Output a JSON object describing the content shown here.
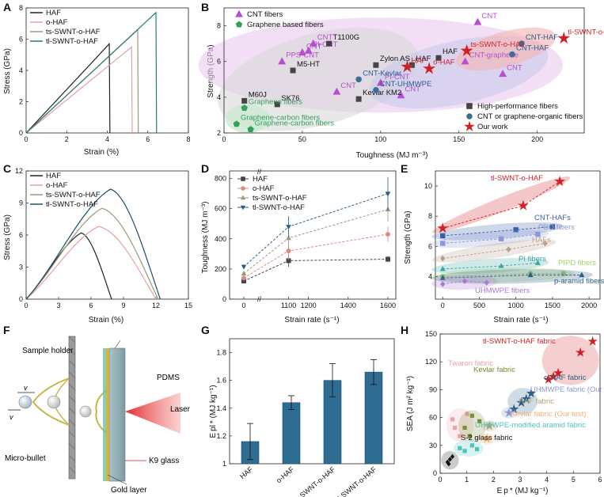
{
  "panels": {
    "A": {
      "label": "A",
      "xlabel": "Strain (%)",
      "ylabel": "Stress (GPa)",
      "xlim": [
        0,
        8
      ],
      "ylim": [
        0,
        8
      ],
      "xticks": [
        "0",
        "2",
        "4",
        "6",
        "8"
      ],
      "yticks": [
        "0",
        "2",
        "4",
        "6",
        "8"
      ],
      "legend": [
        "HAF",
        "o-HAF",
        "ts-SWNT-o-HAF",
        "tl-SWNT-o-HAF"
      ],
      "series": [
        {
          "name": "HAF",
          "color": "#222222",
          "peak": [
            4.1,
            5.7
          ]
        },
        {
          "name": "o-HAF",
          "color": "#e2a29f",
          "peak": [
            5.2,
            5.5
          ]
        },
        {
          "name": "ts-SWNT-o-HAF",
          "color": "#9a9a78",
          "peak": [
            5.5,
            6.6
          ]
        },
        {
          "name": "tl-SWNT-o-HAF",
          "color": "#2c7a74",
          "peak": [
            6.4,
            7.7
          ]
        }
      ]
    },
    "B": {
      "label": "B",
      "xlabel": "Toughness (MJ m⁻³)",
      "ylabel": "Strength (GPa)",
      "xlim": [
        0,
        230
      ],
      "ylim": [
        2,
        9
      ],
      "xticks": [
        "0",
        "50",
        "100",
        "150",
        "200"
      ],
      "yticks": [
        "2",
        "4",
        "6",
        "8"
      ],
      "legend_top": [
        "CNT fibers",
        "Graphene based fibers"
      ],
      "legend_bottom": [
        "High-performance fibers",
        "CNT or graphene-organic fibers",
        "Our work"
      ],
      "points": [
        {
          "label": "CNT",
          "type": "cnt",
          "x": 162,
          "y": 8.2
        },
        {
          "label": "CNT",
          "type": "cnt",
          "x": 57,
          "y": 7.0
        },
        {
          "label": "CNT",
          "type": "cnt",
          "x": 50,
          "y": 6.5
        },
        {
          "label": "PI-CNT",
          "type": "cnt",
          "x": 54,
          "y": 6.6
        },
        {
          "label": "PPS-CNT",
          "type": "cnt",
          "x": 37,
          "y": 6.0
        },
        {
          "label": "CNT",
          "type": "cnt",
          "x": 72,
          "y": 4.3
        },
        {
          "label": "PI-CNT",
          "type": "cnt",
          "x": 100,
          "y": 4.8
        },
        {
          "label": "CNT",
          "type": "cnt",
          "x": 113,
          "y": 4.1
        },
        {
          "label": "CNT-graphene",
          "type": "cnt",
          "x": 154,
          "y": 6.0
        },
        {
          "label": "CNT",
          "type": "cnt",
          "x": 178,
          "y": 5.3
        },
        {
          "label": "T1100G",
          "type": "hp",
          "x": 67,
          "y": 7.0
        },
        {
          "label": "M5-HT",
          "type": "hp",
          "x": 44,
          "y": 5.5
        },
        {
          "label": "Zylon AS",
          "type": "hp",
          "x": 97,
          "y": 5.8
        },
        {
          "label": "HAF",
          "type": "hp",
          "x": 120,
          "y": 5.8
        },
        {
          "label": "HAF",
          "type": "hp",
          "x": 137,
          "y": 6.2
        },
        {
          "label": "M60J",
          "type": "hp",
          "x": 13,
          "y": 3.8
        },
        {
          "label": "SK76",
          "type": "hp",
          "x": 34,
          "y": 3.6
        },
        {
          "label": "Kevlar KM2",
          "type": "hp",
          "x": 86,
          "y": 3.9
        },
        {
          "label": "CNT-HAF",
          "type": "org",
          "x": 190,
          "y": 7.0
        },
        {
          "label": "CNT-HAF",
          "type": "org",
          "x": 184,
          "y": 6.4
        },
        {
          "label": "CNT-Kevlar",
          "type": "org",
          "x": 86,
          "y": 5.0
        },
        {
          "label": "CNT-UHMWPE",
          "type": "org",
          "x": 97,
          "y": 4.4
        },
        {
          "label": "Graphene fibers",
          "type": "gr",
          "x": 13,
          "y": 3.4
        },
        {
          "label": "Graphene-carbon fibers",
          "type": "gr",
          "x": 8,
          "y": 2.5
        },
        {
          "label": "Graphene-carbon fibers",
          "type": "gr",
          "x": 17,
          "y": 2.2
        },
        {
          "label": "tl-SWNT-o-HAF",
          "type": "ours",
          "x": 217,
          "y": 7.3
        },
        {
          "label": "ts-SWNT-o-HAF",
          "type": "ours",
          "x": 155,
          "y": 6.6
        },
        {
          "label": "o-HAF",
          "type": "ours",
          "x": 131,
          "y": 5.6
        },
        {
          "label": "HAF",
          "type": "ours",
          "x": 117,
          "y": 5.7
        }
      ]
    },
    "C": {
      "label": "C",
      "xlabel": "Strain (%)",
      "ylabel": "Stress (GPa)",
      "xlim": [
        0,
        15
      ],
      "ylim": [
        0,
        12
      ],
      "xticks": [
        "0",
        "3",
        "6",
        "9",
        "12",
        "15"
      ],
      "yticks": [
        "0",
        "3",
        "6",
        "9",
        "12"
      ],
      "legend": [
        "HAF",
        "o-HAF",
        "ts-SWNT-o-HAF",
        "tl-SWNT-o-HAF"
      ],
      "series": [
        {
          "name": "HAF",
          "color": "#222222",
          "peak": [
            5.1,
            6.2
          ],
          "end": 7.9
        },
        {
          "name": "o-HAF",
          "color": "#e2a29f",
          "peak": [
            6.7,
            6.8
          ],
          "end": 12.0
        },
        {
          "name": "ts-SWNT-o-HAF",
          "color": "#9a9a78",
          "peak": [
            7.0,
            8.5
          ],
          "end": 12.2
        },
        {
          "name": "tl-SWNT-o-HAF",
          "color": "#1d4f6e",
          "peak": [
            7.8,
            10.3
          ],
          "end": 12.4
        }
      ]
    },
    "D": {
      "label": "D",
      "xlabel": "Strain rate (s⁻¹)",
      "ylabel": "Toughness (MJ m⁻³)",
      "ylim": [
        0,
        850
      ],
      "xticks": [
        "0",
        "1100",
        "1200",
        "1400",
        "1600"
      ],
      "yticks": [
        "0",
        "200",
        "400",
        "600",
        "800"
      ],
      "legend": [
        "HAF",
        "o-HAF",
        "ts-SWNT-o-HAF",
        "tl-SWNT-o-HAF"
      ],
      "x": [
        0,
        1100,
        1600
      ],
      "series": [
        {
          "name": "HAF",
          "color": "#444444",
          "marker": "square",
          "values": [
            120,
            255,
            265
          ],
          "err": [
            10,
            40,
            20
          ]
        },
        {
          "name": "o-HAF",
          "color": "#d98a86",
          "marker": "circle",
          "values": [
            140,
            320,
            430
          ],
          "err": [
            10,
            60,
            50
          ]
        },
        {
          "name": "ts-SWNT-o-HAF",
          "color": "#9a9a78",
          "marker": "triangle",
          "values": [
            170,
            405,
            595
          ],
          "err": [
            15,
            70,
            80
          ]
        },
        {
          "name": "tl-SWNT-o-HAF",
          "color": "#2b5f87",
          "marker": "tri-down",
          "values": [
            215,
            480,
            700
          ],
          "err": [
            15,
            70,
            110
          ]
        }
      ]
    },
    "E": {
      "label": "E",
      "xlabel": "Strain rate (s⁻¹)",
      "ylabel": "Strength (GPa)",
      "xlim": [
        -100,
        2150
      ],
      "ylim": [
        2.5,
        11
      ],
      "xticks": [
        "0",
        "500",
        "1000",
        "1500",
        "2000"
      ],
      "yticks": [
        "4",
        "6",
        "8",
        "10"
      ],
      "groups": [
        {
          "name": "tl-SWNT-o-HAF",
          "color": "#d21f25",
          "marker": "star",
          "x": [
            0,
            1100,
            1600
          ],
          "y": [
            7.2,
            8.7,
            10.3
          ]
        },
        {
          "name": "CNT-HAFs",
          "color": "#3a5ea8",
          "marker": "square",
          "x": [
            0,
            1000,
            1500
          ],
          "y": [
            6.7,
            7.1,
            7.3
          ]
        },
        {
          "name": "PBO fibers",
          "color": "#8a9ad6",
          "marker": "square",
          "x": [
            0,
            800,
            1300
          ],
          "y": [
            6.2,
            6.5,
            6.8
          ]
        },
        {
          "name": "HAFs",
          "color": "#b9a08e",
          "marker": "diamond",
          "x": [
            0,
            900,
            1400
          ],
          "y": [
            5.2,
            5.8,
            6.2
          ]
        },
        {
          "name": "PI fibers",
          "color": "#3aa7a2",
          "marker": "triangle",
          "x": [
            0,
            800,
            1300
          ],
          "y": [
            4.5,
            4.7,
            4.9
          ]
        },
        {
          "name": "PIPD fibers",
          "color": "#a6d16b",
          "marker": "circle",
          "x": [
            0,
            1200,
            1650
          ],
          "y": [
            4.0,
            4.2,
            4.2
          ]
        },
        {
          "name": "p-aramid fibers",
          "color": "#2b5f87",
          "marker": "triangle",
          "x": [
            0,
            1200,
            1900
          ],
          "y": [
            3.9,
            4.1,
            4.1
          ]
        },
        {
          "name": "UHMWPE fibers",
          "color": "#a97bcf",
          "marker": "diamond",
          "x": [
            0,
            300,
            600
          ],
          "y": [
            3.5,
            3.7,
            3.6
          ]
        }
      ]
    },
    "F": {
      "label": "F",
      "texts": {
        "sample_holder": "Sample holder",
        "pdms": "PDMS",
        "laser": "Laser",
        "k9": "K9 glass",
        "gold": "Gold layer",
        "bullet": "Micro-bullet",
        "vi": "v",
        "vr": "v"
      }
    },
    "G": {
      "label": "G",
      "ylabel": "E pl * (MJ kg⁻¹)",
      "ylim": [
        1.0,
        1.9
      ],
      "yticks": [
        "1",
        "1.2",
        "1.4",
        "1.6",
        "1.8"
      ],
      "categories": [
        "HAF",
        "o-HAF",
        "ts-SWNT-o-HAF",
        "tl-SWNT-o-HAF"
      ],
      "values": [
        1.16,
        1.44,
        1.6,
        1.66
      ],
      "err": [
        0.13,
        0.05,
        0.12,
        0.09
      ]
    },
    "H": {
      "label": "H",
      "xlabel": "E p * (MJ kg⁻¹)",
      "ylabel": "SEA (J m² kg⁻¹)",
      "xlim": [
        0,
        6.5
      ],
      "ylim": [
        0,
        150
      ],
      "xticks": [
        "0",
        "1",
        "2",
        "3",
        "4",
        "5",
        "6"
      ],
      "yticks": [
        "0",
        "30",
        "60",
        "90",
        "120",
        "150"
      ],
      "groups": [
        {
          "name": "tl-SWNT-o-HAF fabric",
          "color": "#d21f25",
          "marker": "star",
          "pts": [
            [
              4.4,
              101
            ],
            [
              4.6,
              104
            ],
            [
              4.8,
              108
            ],
            [
              5.7,
              130
            ],
            [
              6.2,
              142
            ]
          ]
        },
        {
          "name": "Twaron fabric",
          "color": "#e8a3a8",
          "marker": "square",
          "pts": [
            [
              0.5,
              58
            ],
            [
              0.6,
              49
            ],
            [
              0.8,
              40
            ],
            [
              1.1,
              64
            ]
          ]
        },
        {
          "name": "Kevlar fabric",
          "color": "#7d8a34",
          "marker": "square",
          "pts": [
            [
              1.0,
              49
            ],
            [
              1.3,
              62
            ],
            [
              1.6,
              56
            ],
            [
              1.2,
              40
            ]
          ]
        },
        {
          "name": "o-HAF fabric",
          "color": "#2b5f87",
          "marker": "star",
          "pts": [
            [
              3.0,
              69
            ],
            [
              3.3,
              76
            ],
            [
              3.5,
              80
            ],
            [
              3.7,
              86
            ]
          ]
        },
        {
          "name": "UHMWPE fabric (Our test)",
          "color": "#8a9ad6",
          "marker": "star",
          "pts": [
            [
              2.8,
              65
            ]
          ]
        },
        {
          "name": "HAF fabric",
          "color": "#b5a36f",
          "marker": "star",
          "pts": [
            [
              2.0,
              51
            ]
          ]
        },
        {
          "name": "Kevlar fabric (Our test)",
          "color": "#f0b079",
          "marker": "star",
          "pts": [
            [
              1.9,
              37
            ]
          ]
        },
        {
          "name": "UHMWPE-modified aramid fabric",
          "color": "#4cc3c0",
          "marker": "square",
          "pts": [
            [
              0.8,
              27
            ],
            [
              1.0,
              24
            ],
            [
              1.3,
              30
            ],
            [
              1.5,
              26
            ]
          ]
        },
        {
          "name": "S-2 glass fabric",
          "color": "#111111",
          "marker": "diamond",
          "pts": [
            [
              0.3,
              12
            ],
            [
              0.4,
              15
            ],
            [
              0.5,
              18
            ],
            [
              0.35,
              10
            ]
          ]
        }
      ]
    }
  },
  "chart_data": [
    {
      "type": "line",
      "panel": "A",
      "xlabel": "Strain (%)",
      "ylabel": "Stress (GPa)",
      "series": [
        {
          "name": "HAF",
          "x": [
            0,
            4.1
          ],
          "y": [
            0,
            5.7
          ]
        },
        {
          "name": "o-HAF",
          "x": [
            0,
            5.2
          ],
          "y": [
            0,
            5.5
          ]
        },
        {
          "name": "ts-SWNT-o-HAF",
          "x": [
            0,
            5.5
          ],
          "y": [
            0,
            6.6
          ]
        },
        {
          "name": "tl-SWNT-o-HAF",
          "x": [
            0,
            6.4
          ],
          "y": [
            0,
            7.7
          ]
        }
      ]
    },
    {
      "type": "scatter",
      "panel": "B",
      "xlabel": "Toughness (MJ m⁻³)",
      "ylabel": "Strength (GPa)"
    },
    {
      "type": "line",
      "panel": "C",
      "xlabel": "Strain (%)",
      "ylabel": "Stress (GPa)"
    },
    {
      "type": "line",
      "panel": "D",
      "xlabel": "Strain rate (s⁻¹)",
      "ylabel": "Toughness (MJ m⁻³)"
    },
    {
      "type": "line",
      "panel": "E",
      "xlabel": "Strain rate (s⁻¹)",
      "ylabel": "Strength (GPa)"
    },
    {
      "type": "bar",
      "panel": "G",
      "categories": [
        "HAF",
        "o-HAF",
        "ts-SWNT-o-HAF",
        "tl-SWNT-o-HAF"
      ],
      "values": [
        1.16,
        1.44,
        1.6,
        1.66
      ]
    },
    {
      "type": "scatter",
      "panel": "H",
      "xlabel": "E p * (MJ kg⁻¹)",
      "ylabel": "SEA (J m² kg⁻¹)"
    }
  ]
}
